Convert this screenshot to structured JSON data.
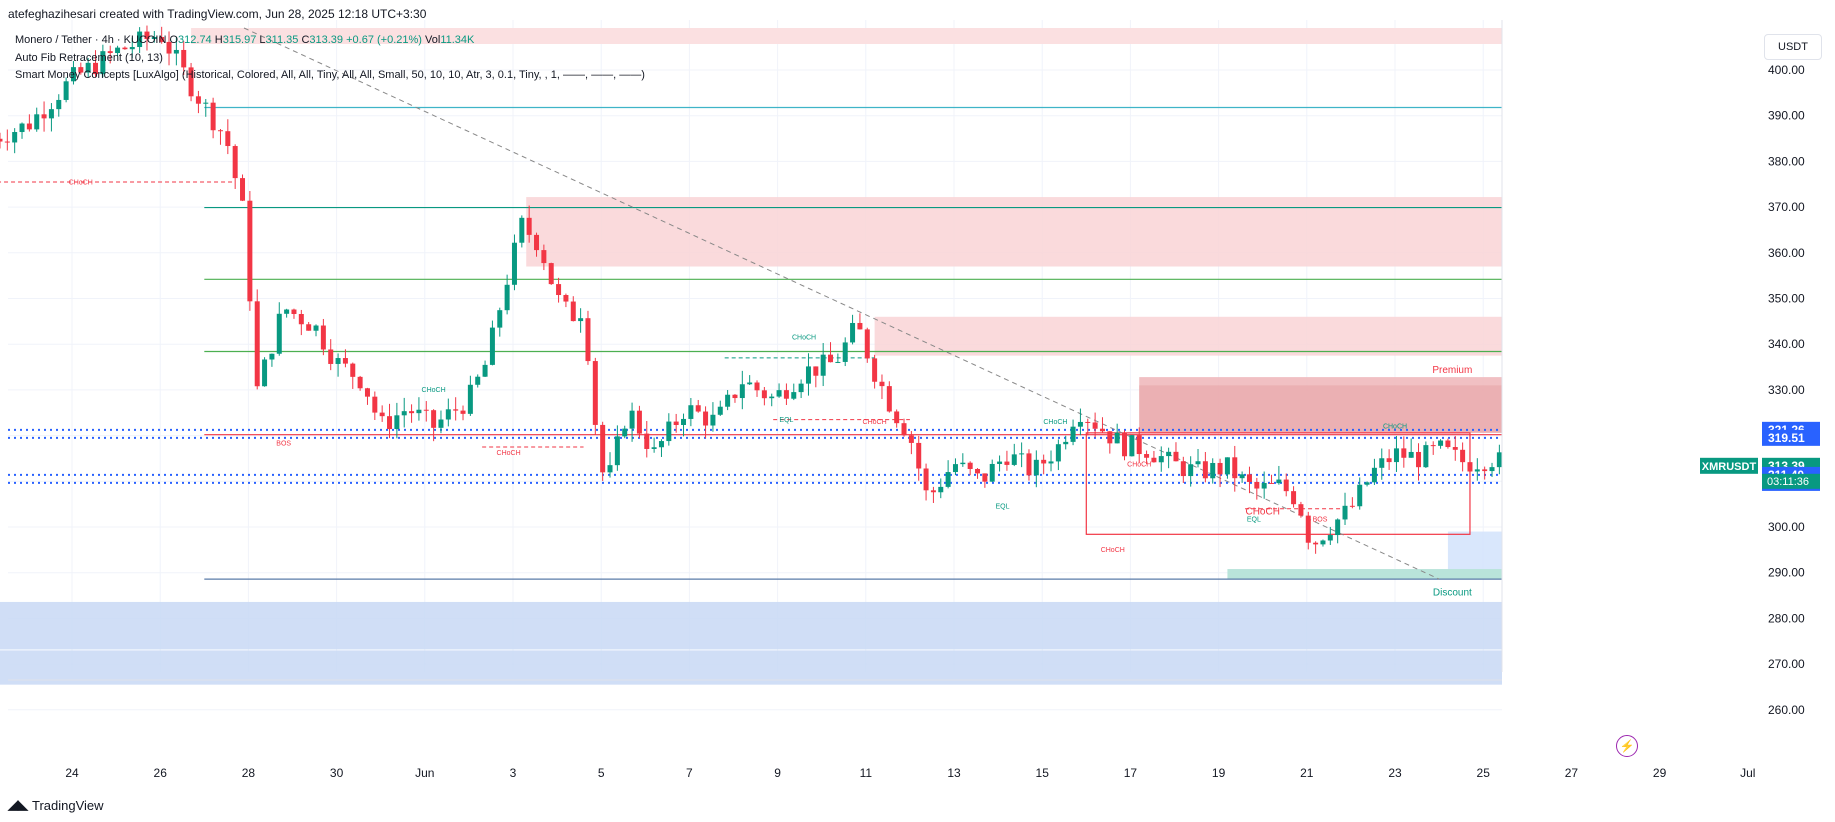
{
  "header": {
    "credit": "atefeghazihesari created with TradingView.com, Jun 28, 2025 12:18 UTC+3:30",
    "symbol_line": "Monero / Tether · 4h · KUCOIN",
    "open_label": "O",
    "open": "312.74",
    "high_label": "H",
    "high": "315.97",
    "low_label": "L",
    "low": "311.35",
    "close_label": "C",
    "close": "313.39",
    "change": "+0.67 (+0.21%)",
    "vol_label": "Vol",
    "vol": "11.34K",
    "indicator1": "Auto Fib Retracement (10, 13)",
    "indicator2": "Smart Money Concepts [LuxAlgo] (Historical, Colored, All, All, Tiny, All, All, Small, 50, 10, 10, Atr, 3, 0.1, Tiny, , 1, ——, ——, ——)"
  },
  "currency_button": "USDT",
  "brand": "TradingView",
  "colors": {
    "up": "#089981",
    "down": "#f23645",
    "supply_zone": "#f7c7c9",
    "demand_zone": "#c9dcf7",
    "fib_blue": "#2962ff"
  },
  "chart_data": {
    "type": "candlestick",
    "timeframe": "4h",
    "ylim": [
      254,
      412
    ],
    "y_ticks": [
      260,
      270,
      280,
      290,
      300,
      310,
      320,
      330,
      340,
      350,
      360,
      370,
      380,
      390,
      400
    ],
    "x_ticks": [
      "24",
      "26",
      "28",
      "30",
      "Jun",
      "3",
      "5",
      "7",
      "9",
      "11",
      "13",
      "15",
      "17",
      "19",
      "21",
      "23",
      "25",
      "27",
      "29",
      "Jul"
    ],
    "series": [
      {
        "name": "XMRUSDT",
        "type": "candles",
        "anchors": [
          {
            "day": 22.2,
            "price": 385
          },
          {
            "day": 23.0,
            "price": 388
          },
          {
            "day": 24.0,
            "price": 398
          },
          {
            "day": 25.0,
            "price": 404
          },
          {
            "day": 26.0,
            "price": 408
          },
          {
            "day": 26.8,
            "price": 395
          },
          {
            "day": 27.5,
            "price": 385
          },
          {
            "day": 27.9,
            "price": 368
          },
          {
            "day": 28.2,
            "price": 330
          },
          {
            "day": 28.8,
            "price": 348
          },
          {
            "day": 29.5,
            "price": 344
          },
          {
            "day": 30.0,
            "price": 336
          },
          {
            "day": 30.6,
            "price": 332
          },
          {
            "day": 31.0,
            "price": 322
          },
          {
            "day": 31.6,
            "price": 326
          },
          {
            "day": 32.2,
            "price": 322
          },
          {
            "day": 33.0,
            "price": 328
          },
          {
            "day": 33.4,
            "price": 336
          },
          {
            "day": 33.8,
            "price": 352
          },
          {
            "day": 34.2,
            "price": 366
          },
          {
            "day": 34.6,
            "price": 362
          },
          {
            "day": 35.0,
            "price": 350
          },
          {
            "day": 35.3,
            "price": 346
          },
          {
            "day": 35.6,
            "price": 348
          },
          {
            "day": 35.9,
            "price": 320
          },
          {
            "day": 36.1,
            "price": 308
          },
          {
            "day": 36.6,
            "price": 326
          },
          {
            "day": 37.2,
            "price": 316
          },
          {
            "day": 37.9,
            "price": 326
          },
          {
            "day": 38.6,
            "price": 323
          },
          {
            "day": 39.2,
            "price": 332
          },
          {
            "day": 39.9,
            "price": 328
          },
          {
            "day": 40.6,
            "price": 334
          },
          {
            "day": 41.3,
            "price": 336
          },
          {
            "day": 41.8,
            "price": 344
          },
          {
            "day": 42.2,
            "price": 334
          },
          {
            "day": 42.6,
            "price": 326
          },
          {
            "day": 43.0,
            "price": 320
          },
          {
            "day": 43.4,
            "price": 306
          },
          {
            "day": 44.0,
            "price": 314
          },
          {
            "day": 44.6,
            "price": 310
          },
          {
            "day": 45.2,
            "price": 316
          },
          {
            "day": 45.8,
            "price": 312
          },
          {
            "day": 46.4,
            "price": 318
          },
          {
            "day": 46.8,
            "price": 326
          },
          {
            "day": 47.3,
            "price": 322
          },
          {
            "day": 47.8,
            "price": 318
          },
          {
            "day": 48.4,
            "price": 317
          },
          {
            "day": 48.9,
            "price": 314
          },
          {
            "day": 49.5,
            "price": 312
          },
          {
            "day": 50.2,
            "price": 313
          },
          {
            "day": 50.8,
            "price": 308
          },
          {
            "day": 51.4,
            "price": 309
          },
          {
            "day": 51.8,
            "price": 306
          },
          {
            "day": 52.1,
            "price": 296
          },
          {
            "day": 52.5,
            "price": 300
          },
          {
            "day": 53.0,
            "price": 304
          },
          {
            "day": 53.5,
            "price": 312
          },
          {
            "day": 54.0,
            "price": 316
          },
          {
            "day": 54.6,
            "price": 315
          },
          {
            "day": 55.0,
            "price": 317
          },
          {
            "day": 55.6,
            "price": 314
          },
          {
            "day": 56.2,
            "price": 315
          },
          {
            "day": 56.7,
            "price": 313
          },
          {
            "day": 57.2,
            "price": 306
          },
          {
            "day": 57.7,
            "price": 308
          },
          {
            "day": 58.2,
            "price": 313.4
          }
        ]
      }
    ],
    "horizontal_levels": [
      {
        "price": 391.8,
        "color": "#3fb4c8"
      },
      {
        "price": 369.9,
        "color": "#089981"
      },
      {
        "price": 354.2,
        "color": "#4caf50"
      },
      {
        "price": 338.4,
        "color": "#4caf50"
      },
      {
        "price": 320.2,
        "color": "#f23645"
      },
      {
        "price": 288.6,
        "color": "#5a7ba8"
      }
    ],
    "dotted_levels": [
      321.26,
      319.51,
      311.4,
      309.65
    ],
    "zones": [
      {
        "kind": "supply",
        "from_day": 34.3,
        "to_day": 59.0,
        "top": 372.2,
        "bottom": 357.0
      },
      {
        "kind": "supply",
        "from_day": 42.2,
        "to_day": 59.0,
        "top": 346.0,
        "bottom": 337.5
      },
      {
        "kind": "premium",
        "from_day": 48.2,
        "to_day": 59.0,
        "top": 332.8,
        "bottom": 320.6
      },
      {
        "kind": "discount",
        "from_day": 55.2,
        "to_day": 59.0,
        "top": 299.0,
        "bottom": 288.6
      },
      {
        "kind": "demand",
        "from_day": 20.0,
        "to_day": 59.0,
        "top": 283.6,
        "bottom": 273.2
      },
      {
        "kind": "demand",
        "from_day": 20.0,
        "to_day": 59.0,
        "top": 273.0,
        "bottom": 265.5
      }
    ],
    "annotations": [
      {
        "text": "CHoCH",
        "day": 24.2,
        "price": 375.0,
        "color": "#f23645"
      },
      {
        "text": "BOS",
        "day": 28.8,
        "price": 317.8,
        "color": "#f23645"
      },
      {
        "text": "CHoCH",
        "day": 32.2,
        "price": 329.5,
        "color": "#089981"
      },
      {
        "text": "CHoCH",
        "day": 33.9,
        "price": 315.8,
        "color": "#f23645"
      },
      {
        "text": "CHoCH",
        "day": 40.6,
        "price": 341.0,
        "color": "#089981"
      },
      {
        "text": "EQL",
        "day": 40.2,
        "price": 323.0,
        "color": "#089981"
      },
      {
        "text": "CHoCH",
        "day": 42.2,
        "price": 322.5,
        "color": "#f23645"
      },
      {
        "text": "CHoCH",
        "day": 46.3,
        "price": 322.5,
        "color": "#089981"
      },
      {
        "text": "EQL",
        "day": 45.1,
        "price": 304.0,
        "color": "#089981"
      },
      {
        "text": "CHoCH",
        "day": 48.2,
        "price": 313.2,
        "color": "#f23645"
      },
      {
        "text": "CHoCH",
        "day": 47.6,
        "price": 294.5,
        "color": "#f23645"
      },
      {
        "text": "EQL",
        "day": 50.8,
        "price": 301.2,
        "color": "#089981"
      },
      {
        "text": "BOS",
        "day": 52.3,
        "price": 301.2,
        "color": "#f23645"
      },
      {
        "text": "CHoCH",
        "day": 54.0,
        "price": 321.5,
        "color": "#089981"
      },
      {
        "text": "CHoCH",
        "day": 57.1,
        "price": 305.4,
        "color": "#f23645"
      },
      {
        "text": "Premium",
        "day": 55.3,
        "price": 333.7,
        "color": "#f23645"
      },
      {
        "text": "Discount",
        "day": 55.3,
        "price": 285.0,
        "color": "#089981"
      }
    ],
    "price_labels": [
      {
        "price": 321.26,
        "text": "321.26",
        "color": "#2962ff"
      },
      {
        "price": 319.51,
        "text": "319.51",
        "color": "#2962ff"
      },
      {
        "price": 313.39,
        "text": "313.39",
        "color": "#089981"
      },
      {
        "price": 311.4,
        "text": "311.40",
        "color": "#2962ff"
      },
      {
        "price": 309.65,
        "text": "309.65",
        "color": "#2962ff"
      }
    ],
    "symbol_tag": "XMRUSDT",
    "countdown": "03:11:36"
  }
}
